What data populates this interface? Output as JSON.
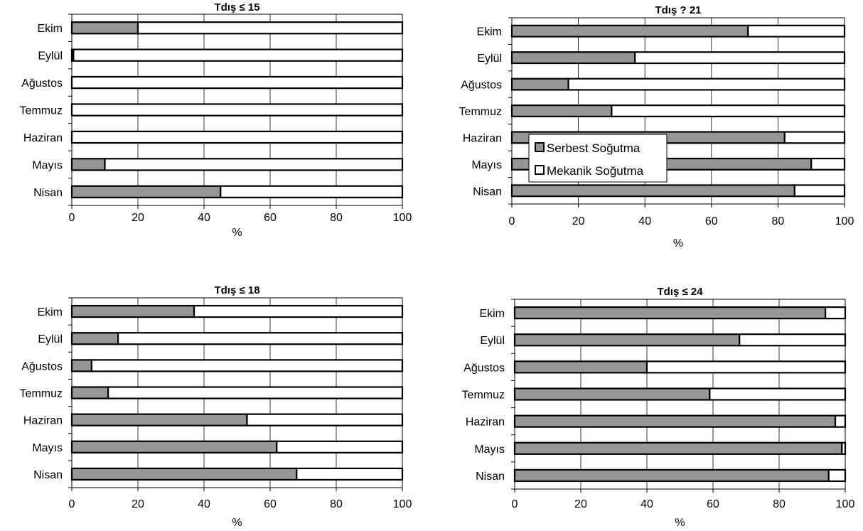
{
  "colors": {
    "serbest": "#969696",
    "mekanik": "#ffffff",
    "outline": "#000000",
    "grid": "#000000"
  },
  "legend": {
    "items": [
      {
        "label": "Serbest Soğutma",
        "color": "#969696"
      },
      {
        "label": "Mekanik Soğutma",
        "color": "#ffffff"
      }
    ],
    "placement": "inside top-right panel, lower-left area"
  },
  "chart_data": [
    {
      "type": "bar",
      "orientation": "horizontal",
      "stacked": true,
      "title": "Tdış ≤ 15",
      "xlabel": "%",
      "ylabel": "",
      "xlim": [
        0,
        100
      ],
      "xticks": [
        "0",
        "20",
        "40",
        "60",
        "80",
        "100"
      ],
      "grid": "vertical",
      "categories": [
        "Ekim",
        "Eylül",
        "Ağustos",
        "Temmuz",
        "Haziran",
        "Mayıs",
        "Nisan"
      ],
      "series": [
        {
          "name": "Serbest Soğutma",
          "values": [
            20,
            0.5,
            0,
            0,
            0,
            10,
            45
          ]
        },
        {
          "name": "Mekanik Soğutma",
          "values": [
            80,
            99.5,
            100,
            100,
            100,
            90,
            55
          ]
        }
      ]
    },
    {
      "type": "bar",
      "orientation": "horizontal",
      "stacked": true,
      "title": "Tdış ? 21",
      "xlabel": "%",
      "ylabel": "",
      "xlim": [
        0,
        100
      ],
      "xticks": [
        "0",
        "20",
        "40",
        "60",
        "80",
        "100"
      ],
      "grid": "vertical",
      "categories": [
        "Ekim",
        "Eylül",
        "Ağustos",
        "Temmuz",
        "Haziran",
        "Mayıs",
        "Nisan"
      ],
      "series": [
        {
          "name": "Serbest Soğutma",
          "values": [
            71,
            37,
            17,
            30,
            82,
            90,
            85
          ]
        },
        {
          "name": "Mekanik Soğutma",
          "values": [
            29,
            63,
            83,
            70,
            18,
            10,
            15
          ]
        }
      ]
    },
    {
      "type": "bar",
      "orientation": "horizontal",
      "stacked": true,
      "title": "Tdış ≤ 18",
      "xlabel": "%",
      "ylabel": "",
      "xlim": [
        0,
        100
      ],
      "xticks": [
        "0",
        "20",
        "40",
        "60",
        "80",
        "100"
      ],
      "grid": "vertical",
      "categories": [
        "Ekim",
        "Eylül",
        "Ağustos",
        "Temmuz",
        "Haziran",
        "Mayıs",
        "Nisan"
      ],
      "series": [
        {
          "name": "Serbest Soğutma",
          "values": [
            37,
            14,
            6,
            11,
            53,
            62,
            68
          ]
        },
        {
          "name": "Mekanik Soğutma",
          "values": [
            63,
            86,
            94,
            89,
            47,
            38,
            32
          ]
        }
      ]
    },
    {
      "type": "bar",
      "orientation": "horizontal",
      "stacked": true,
      "title": "Tdış ≤ 24",
      "xlabel": "%",
      "ylabel": "",
      "xlim": [
        0,
        100
      ],
      "xticks": [
        "0",
        "20",
        "40",
        "60",
        "80",
        "100"
      ],
      "grid": "vertical",
      "categories": [
        "Ekim",
        "Eylül",
        "Ağustos",
        "Temmuz",
        "Haziran",
        "Mayıs",
        "Nisan"
      ],
      "series": [
        {
          "name": "Serbest Soğutma",
          "values": [
            94,
            68,
            40,
            59,
            97,
            99,
            95
          ]
        },
        {
          "name": "Mekanik Soğutma",
          "values": [
            6,
            32,
            60,
            41,
            3,
            1,
            5
          ]
        }
      ]
    }
  ]
}
